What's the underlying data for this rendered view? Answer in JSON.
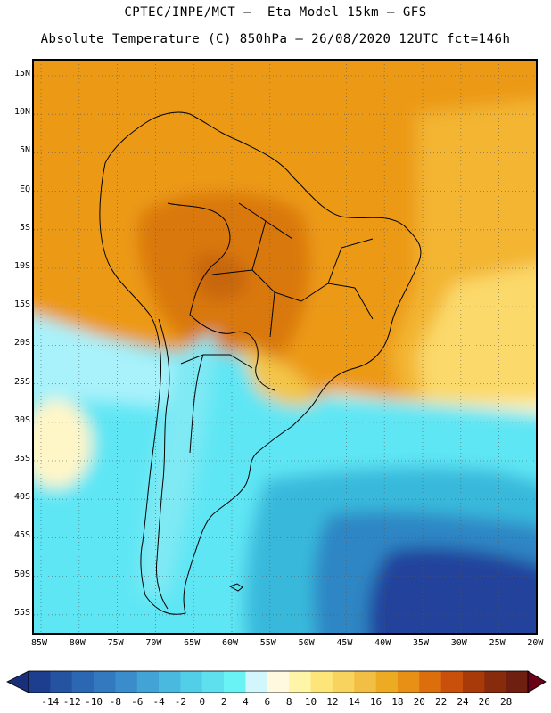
{
  "title": {
    "line1": "CPTEC/INPE/MCT –  Eta Model 15km – GFS",
    "line2": "Absolute Temperature (C) 850hPa – 26/08/2020 12UTC fct=146h"
  },
  "map": {
    "region": "South America",
    "lat_labels": [
      "15N",
      "10N",
      "5N",
      "EQ",
      "5S",
      "10S",
      "15S",
      "20S",
      "25S",
      "30S",
      "35S",
      "40S",
      "45S",
      "50S",
      "55S"
    ],
    "lon_labels": [
      "85W",
      "80W",
      "75W",
      "70W",
      "65W",
      "60W",
      "55W",
      "50W",
      "45W",
      "40W",
      "35W",
      "30W",
      "25W",
      "20W"
    ],
    "palette": {
      "warm_dark": "#d9780f",
      "warm": "#ec9a15",
      "warm_light": "#f3b531",
      "yellow": "#fbd96a",
      "pale": "#fff6c8",
      "cyan_light": "#a9f2fb",
      "cyan": "#5fe6f4",
      "blue_light": "#37b9dc",
      "blue": "#2d86c4",
      "blue_dark": "#23429c"
    }
  },
  "colorbar": {
    "labels": [
      "-14",
      "-12",
      "-10",
      "-8",
      "-6",
      "-4",
      "-2",
      "0",
      "2",
      "4",
      "6",
      "8",
      "10",
      "12",
      "14",
      "16",
      "18",
      "20",
      "22",
      "24",
      "26",
      "28"
    ],
    "colors": [
      "#1d3e8e",
      "#2453a2",
      "#2b67b2",
      "#3379bf",
      "#3a8cca",
      "#42a3d6",
      "#4ab9df",
      "#52cfe8",
      "#5fe0ef",
      "#6af3f5",
      "#d1f6fb",
      "#fff9e0",
      "#fff5a8",
      "#fde57a",
      "#f8d35e",
      "#f2bf44",
      "#ecab23",
      "#e88f16",
      "#dd6e0c",
      "#c9500a",
      "#a83a0a",
      "#882a0c",
      "#6f1f10"
    ],
    "under_color": "#1a2f7a",
    "over_color": "#6a0018"
  }
}
